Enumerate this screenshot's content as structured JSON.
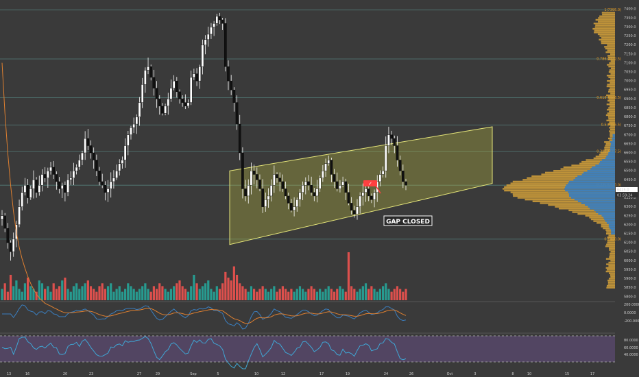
{
  "colors": {
    "background": "#3a3a3a",
    "candle": "#ffffff",
    "candle_outline": "#000000",
    "vol_up": "#26a69a",
    "vol_down": "#ef5350",
    "channel_fill": "#b8b842",
    "channel_line": "#e6e67a",
    "fib_line": "#5a8f8a",
    "fib_text": "#f0a020",
    "profile_orange": "#d6a23a",
    "profile_blue": "#3a7fc0",
    "rsi_band": "#6a4f8a",
    "rsi_line": "#3fa7d6",
    "macd_line": "#3a7fc0",
    "signal_line": "#e08030",
    "annotation": "#ff4040"
  },
  "chart_data": [
    {
      "type": "candlestick",
      "y_ticks": [
        "7400.0",
        "7350.0",
        "7300.0",
        "7250.0",
        "7200.0",
        "7150.0",
        "7100.0",
        "7050.0",
        "7000.0",
        "6950.0",
        "6900.0",
        "6850.0",
        "6800.0",
        "6750.0",
        "6700.0",
        "6650.0",
        "6600.0",
        "6550.0",
        "6500.0",
        "6450.0",
        "6400.0",
        "6350.0",
        "6300.0",
        "6250.0",
        "6200.0",
        "6150.0",
        "6100.0",
        "6050.0",
        "6000.0",
        "5950.0",
        "5900.0",
        "5850.0",
        "5800.0"
      ],
      "x_ticks": [
        "13",
        "16",
        "20",
        "23",
        "27",
        "29",
        "Sep",
        "5",
        "10",
        "12",
        "17",
        "19",
        "24",
        "26",
        "Oct",
        "3",
        "8",
        "10",
        "15",
        "17"
      ],
      "ylim": [
        5780,
        7420
      ],
      "close_series": [
        6250,
        6180,
        6100,
        6050,
        6120,
        6200,
        6300,
        6380,
        6420,
        6350,
        6400,
        6450,
        6380,
        6420,
        6480,
        6460,
        6500,
        6520,
        6480,
        6440,
        6400,
        6420,
        6380,
        6450,
        6460,
        6500,
        6520,
        6560,
        6600,
        6680,
        6640,
        6600,
        6560,
        6500,
        6440,
        6420,
        6380,
        6400,
        6440,
        6460,
        6500,
        6540,
        6560,
        6640,
        6700,
        6740,
        6760,
        6800,
        6880,
        6980,
        7060,
        7080,
        7020,
        6960,
        6900,
        6860,
        6820,
        6860,
        6900,
        6960,
        7000,
        6940,
        6900,
        6880,
        6860,
        6880,
        7020,
        7040,
        7000,
        7080,
        7200,
        7230,
        7260,
        7300,
        7320,
        7360,
        7340,
        7320,
        7080,
        7000,
        6950,
        6880,
        6760,
        6600,
        6400,
        6360,
        6420,
        6500,
        6480,
        6450,
        6400,
        6300,
        6340,
        6360,
        6420,
        6480,
        6460,
        6440,
        6400,
        6360,
        6320,
        6280,
        6300,
        6340,
        6380,
        6420,
        6440,
        6420,
        6380,
        6360,
        6400,
        6460,
        6500,
        6540,
        6560,
        6480,
        6440,
        6400,
        6420,
        6440,
        6380,
        6320,
        6280,
        6260,
        6300,
        6360,
        6380,
        6400,
        6360,
        6340,
        6380,
        6440,
        6480,
        6500,
        6640,
        6700,
        6680,
        6640,
        6560,
        6500,
        6440,
        6420
      ],
      "fib_levels": [
        {
          "label": "1(7395.0)",
          "value": 7395
        },
        {
          "label": "0.786(7122.5)",
          "value": 7122.5
        },
        {
          "label": "0.618(6906.5)",
          "value": 6906.5
        },
        {
          "label": "0.5(6755.5)",
          "value": 6755.5
        },
        {
          "label": "0.382(6607.5)",
          "value": 6607.5
        },
        {
          "label": "0.236(6420.0)",
          "value": 6420
        },
        {
          "label": "0(6120.0)",
          "value": 6120
        }
      ],
      "price_tags": [
        "6425.0",
        "03:59:24"
      ],
      "annotation": "GAP CLOSED",
      "channel": {
        "upper_start": 6500,
        "upper_end": 6745,
        "lower_start": 6090,
        "lower_end": 6430
      }
    },
    {
      "type": "bar",
      "name": "volume",
      "values": [
        4,
        6,
        3,
        9,
        5,
        7,
        4,
        3,
        6,
        8,
        5,
        4,
        3,
        7,
        6,
        4,
        5,
        3,
        6,
        4,
        5,
        7,
        8,
        4,
        3,
        5,
        6,
        4,
        5,
        6,
        7,
        5,
        4,
        3,
        5,
        6,
        4,
        5,
        6,
        3,
        4,
        5,
        3,
        4,
        6,
        5,
        4,
        3,
        4,
        5,
        6,
        4,
        3,
        5,
        4,
        6,
        5,
        4,
        3,
        4,
        5,
        6,
        7,
        5,
        4,
        3,
        5,
        9,
        6,
        4,
        5,
        6,
        7,
        4,
        3,
        5,
        4,
        6,
        10,
        8,
        7,
        12,
        9,
        6,
        5,
        4,
        3,
        5,
        4,
        3,
        4,
        5,
        4,
        3,
        4,
        5,
        3,
        4,
        5,
        4,
        3,
        4,
        3,
        4,
        5,
        4,
        3,
        4,
        5,
        4,
        3,
        4,
        3,
        4,
        5,
        4,
        3,
        4,
        5,
        4,
        3,
        17,
        5,
        4,
        3,
        4,
        5,
        6,
        4,
        5,
        4,
        3,
        4,
        5,
        6,
        4,
        3,
        4,
        5,
        4,
        3,
        4
      ]
    },
    {
      "type": "line",
      "name": "macd",
      "y_ticks": [
        "200.0000",
        "0.0000",
        "-200.0000"
      ]
    },
    {
      "type": "line",
      "name": "rsi",
      "y_ticks": [
        "80.0000",
        "60.0000",
        "40.0000"
      ]
    }
  ]
}
